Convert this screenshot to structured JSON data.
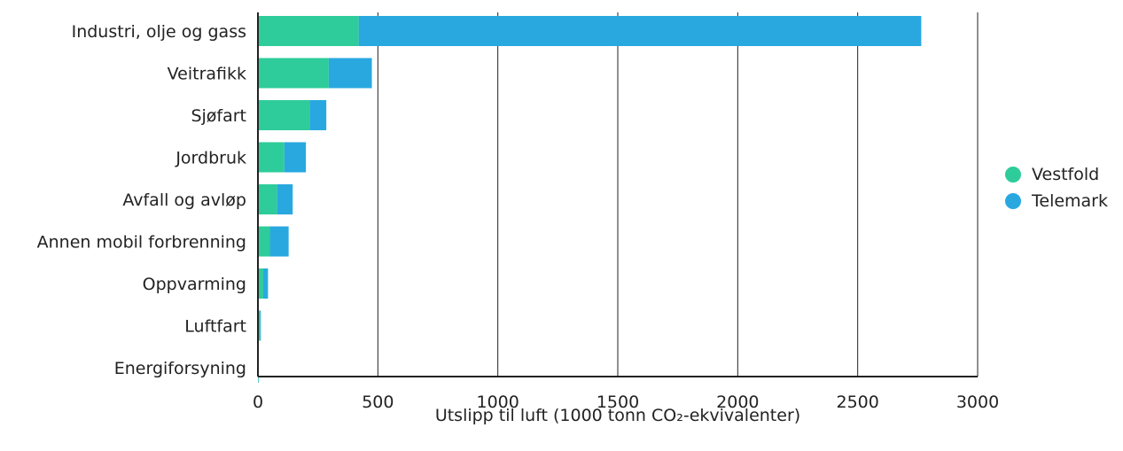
{
  "chart_data": {
    "type": "bar",
    "orientation": "horizontal",
    "stacked": true,
    "title": "",
    "xlabel": "Utslipp til luft (1000 tonn CO₂-ekvivalenter)",
    "ylabel": "",
    "xlim": [
      0,
      3000
    ],
    "xticks": [
      0,
      500,
      1000,
      1500,
      2000,
      2500,
      3000
    ],
    "xtick_labels": [
      "0",
      "500",
      "1000",
      "1500",
      "2000",
      "2500",
      "3000"
    ],
    "grid": "vertical",
    "legend_position": "right",
    "categories": [
      "Industri, olje og gass",
      "Veitrafikk",
      "Sjøfart",
      "Jordbruk",
      "Avfall og avløp",
      "Annen mobil forbrenning",
      "Oppvarming",
      "Luftfart",
      "Energiforsyning"
    ],
    "series": [
      {
        "name": "Vestfold",
        "color": "#2ecc9a",
        "values": [
          420,
          295,
          215,
          110,
          80,
          50,
          22,
          9,
          2
        ]
      },
      {
        "name": "Telemark",
        "color": "#29a8e0",
        "values": [
          2345,
          180,
          70,
          90,
          65,
          78,
          20,
          3,
          1
        ]
      }
    ]
  }
}
